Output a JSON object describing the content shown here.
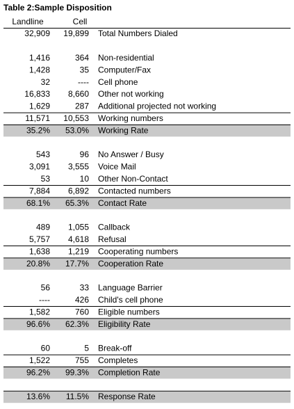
{
  "title": "Table 2:Sample Disposition",
  "header": [
    "Landline",
    "Cell"
  ],
  "groups": [
    {
      "rows": [
        [
          "32,909",
          "19,899",
          "Total Numbers Dialed"
        ]
      ]
    },
    {
      "rows": [
        [
          "1,416",
          "364",
          "Non-residential"
        ],
        [
          "1,428",
          "35",
          "Computer/Fax"
        ],
        [
          "32",
          "----",
          "Cell phone"
        ],
        [
          "16,833",
          "8,660",
          "Other not working"
        ],
        [
          "1,629",
          "287",
          "Additional projected not working"
        ]
      ],
      "total": [
        "11,571",
        "10,553",
        "Working numbers"
      ],
      "rate": [
        "35.2%",
        "53.0%",
        "Working Rate"
      ]
    },
    {
      "rows": [
        [
          "543",
          "96",
          "No Answer / Busy"
        ],
        [
          "3,091",
          "3,555",
          "Voice Mail"
        ],
        [
          "53",
          "10",
          "Other Non-Contact"
        ]
      ],
      "total": [
        "7,884",
        "6,892",
        "Contacted numbers"
      ],
      "rate": [
        "68.1%",
        "65.3%",
        "Contact Rate"
      ]
    },
    {
      "rows": [
        [
          "489",
          "1,055",
          "Callback"
        ],
        [
          "5,757",
          "4,618",
          "Refusal"
        ]
      ],
      "total": [
        "1,638",
        "1,219",
        "Cooperating numbers"
      ],
      "rate": [
        "20.8%",
        "17.7%",
        "Cooperation Rate"
      ]
    },
    {
      "rows": [
        [
          "56",
          "33",
          "Language Barrier"
        ],
        [
          "----",
          "426",
          "Child's cell phone"
        ]
      ],
      "total": [
        "1,582",
        "760",
        "Eligible numbers"
      ],
      "rate": [
        "96.6%",
        "62.3%",
        "Eligibility Rate"
      ]
    },
    {
      "rows": [
        [
          "60",
          "5",
          "Break-off"
        ]
      ],
      "total": [
        "1,522",
        "755",
        "Completes"
      ],
      "rate": [
        "96.2%",
        "99.3%",
        "Completion Rate"
      ]
    },
    {
      "rate": [
        "13.6%",
        "11.5%",
        "Response Rate"
      ]
    }
  ]
}
